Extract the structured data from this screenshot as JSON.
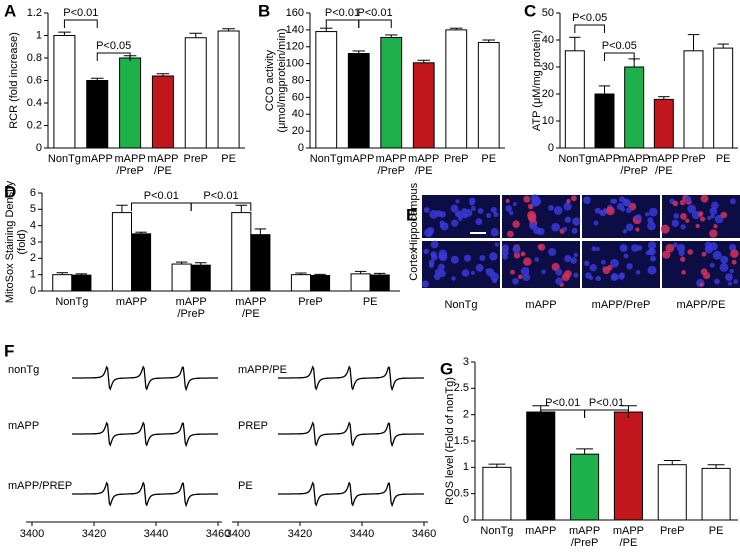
{
  "chart_data": [
    {
      "type": "bar",
      "label": "A",
      "ylabel": "RCR (fold increase)",
      "categories": [
        [
          "NonTg"
        ],
        [
          "mAPP"
        ],
        [
          "mAPP",
          "/PreP"
        ],
        [
          "mAPP",
          "/PE"
        ],
        [
          "PreP"
        ],
        [
          "PE"
        ]
      ],
      "values": [
        1.0,
        0.6,
        0.8,
        0.64,
        0.98,
        1.04
      ],
      "errors": [
        0.03,
        0.02,
        0.02,
        0.02,
        0.04,
        0.02
      ],
      "colors": [
        "#ffffff",
        "#000000",
        "#1db04b",
        "#c0161c",
        "#ffffff",
        "#ffffff"
      ],
      "ylim": [
        0,
        1.2
      ],
      "yticks": [
        0,
        0.2,
        0.4,
        0.6,
        0.8,
        1,
        1.2
      ],
      "annotations": [
        "P<0.01",
        "P<0.05"
      ]
    },
    {
      "type": "bar",
      "label": "B",
      "ylabel": [
        "CCO activity",
        "(μmol/mgprotein/min)"
      ],
      "categories": [
        [
          "NonTg"
        ],
        [
          "mAPP"
        ],
        [
          "mAPP",
          "/PreP"
        ],
        [
          "mAPP",
          "/PE"
        ],
        [
          "PreP"
        ],
        [
          "PE"
        ]
      ],
      "values": [
        138,
        112,
        131,
        101,
        140,
        125
      ],
      "errors": [
        4,
        3,
        3,
        3,
        2,
        3
      ],
      "colors": [
        "#ffffff",
        "#000000",
        "#1db04b",
        "#c0161c",
        "#ffffff",
        "#ffffff"
      ],
      "ylim": [
        0,
        160
      ],
      "yticks": [
        0,
        20,
        40,
        60,
        80,
        100,
        120,
        140,
        160
      ],
      "annotations": [
        "P<0.01",
        "P<0.01"
      ]
    },
    {
      "type": "bar",
      "label": "C",
      "ylabel": "ATP (μM/mg protein)",
      "categories": [
        [
          "NonTg"
        ],
        [
          "mAPP"
        ],
        [
          "mAPP",
          "/PreP"
        ],
        [
          "mAPP",
          "/PE"
        ],
        [
          "PreP"
        ],
        [
          "PE"
        ]
      ],
      "values": [
        36,
        20,
        30,
        18,
        36,
        37
      ],
      "errors": [
        5,
        3,
        3,
        1,
        6,
        1.5
      ],
      "colors": [
        "#ffffff",
        "#000000",
        "#1db04b",
        "#c0161c",
        "#ffffff",
        "#ffffff"
      ],
      "ylim": [
        0,
        50
      ],
      "yticks": [
        0,
        10,
        20,
        30,
        40,
        50
      ],
      "annotations": [
        "P<0.05",
        "P<0.05"
      ]
    },
    {
      "type": "bar",
      "label": "D",
      "ylabel": [
        "MitoSox Staining Density",
        "(fold)"
      ],
      "categories": [
        [
          "NonTg"
        ],
        [
          "mAPP"
        ],
        [
          "mAPP",
          "/PreP"
        ],
        [
          "mAPP",
          "/PE"
        ],
        [
          "PreP"
        ],
        [
          "PE"
        ]
      ],
      "series": [
        {
          "color": "#ffffff",
          "values": [
            1.0,
            4.8,
            1.65,
            4.8,
            1.0,
            1.05
          ],
          "errors": [
            0.12,
            0.45,
            0.12,
            0.45,
            0.1,
            0.15
          ]
        },
        {
          "color": "#000000",
          "values": [
            0.97,
            3.5,
            1.58,
            3.45,
            0.95,
            0.98
          ],
          "errors": [
            0.08,
            0.1,
            0.15,
            0.35,
            0.07,
            0.1
          ]
        }
      ],
      "ylim": [
        0,
        6
      ],
      "yticks": [
        0,
        1,
        2,
        3,
        4,
        5,
        6
      ],
      "annotations": [
        "P<0.01",
        "P<0.01"
      ]
    },
    {
      "type": "image-grid",
      "label": "E",
      "row_labels": [
        "Hippocampus",
        "Cortex"
      ],
      "col_labels": [
        "NonTg",
        "mAPP",
        "mAPP/PreP",
        "mAPP/PE"
      ]
    },
    {
      "type": "epr",
      "label": "F",
      "xlim": [
        3400,
        3460
      ],
      "xticks": [
        3400,
        3420,
        3440,
        3460
      ],
      "panels": [
        {
          "traces": [
            "nonTg",
            "mAPP",
            "mAPP/PREP"
          ]
        },
        {
          "traces": [
            "mAPP/PE",
            "PREP",
            "PE"
          ]
        }
      ]
    },
    {
      "type": "bar",
      "label": "G",
      "ylabel": "ROS level (Fold of nonTg)",
      "categories": [
        [
          "NonTg"
        ],
        [
          "mAPP"
        ],
        [
          "mAPP",
          "/PreP"
        ],
        [
          "mAPP",
          "/PE"
        ],
        [
          "PreP"
        ],
        [
          "PE"
        ]
      ],
      "values": [
        1.0,
        2.05,
        1.25,
        2.05,
        1.05,
        0.98
      ],
      "errors": [
        0.06,
        0.12,
        0.1,
        0.12,
        0.08,
        0.07
      ],
      "colors": [
        "#ffffff",
        "#000000",
        "#1db04b",
        "#c0161c",
        "#ffffff",
        "#ffffff"
      ],
      "ylim": [
        0,
        3
      ],
      "yticks": [
        0,
        0.5,
        1,
        1.5,
        2,
        2.5,
        3
      ],
      "annotations": [
        "P<0.01",
        "P<0.01"
      ]
    }
  ]
}
